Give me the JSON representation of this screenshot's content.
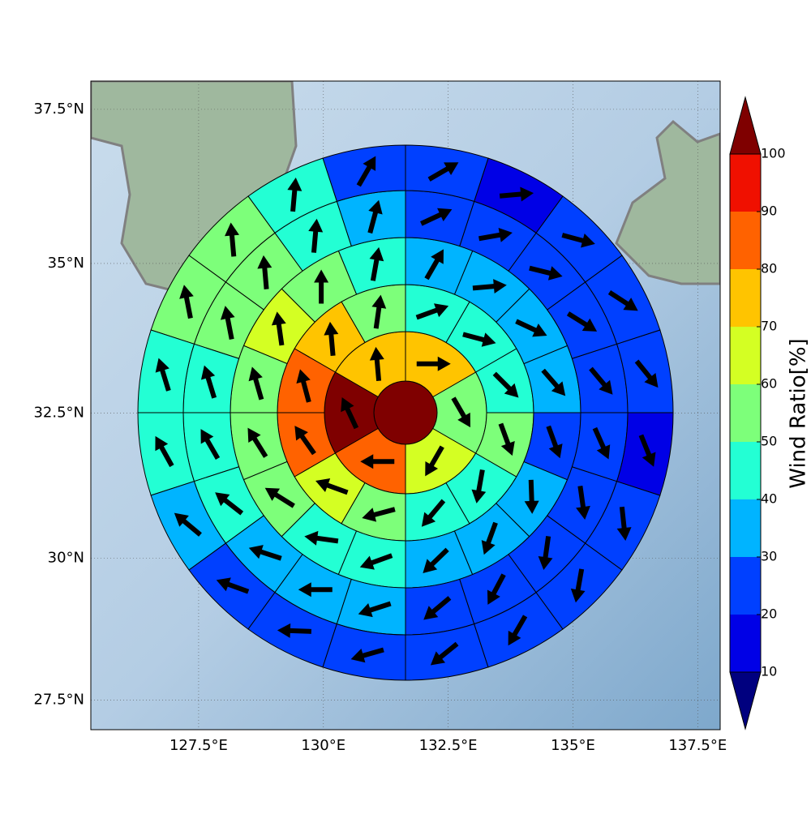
{
  "chart_data": {
    "type": "polar_map",
    "projection": "mercator",
    "xlim": [
      125.34,
      137.95
    ],
    "ylim": [
      26.97,
      37.95
    ],
    "xticks": [
      {
        "value": 127.5,
        "label": "127.5°E"
      },
      {
        "value": 130,
        "label": "130°E"
      },
      {
        "value": 132.5,
        "label": "132.5°E"
      },
      {
        "value": 135,
        "label": "135°E"
      },
      {
        "value": 137.5,
        "label": "137.5°E"
      }
    ],
    "yticks": [
      {
        "value": 27.5,
        "label": "27.5°N"
      },
      {
        "value": 30,
        "label": "30°N"
      },
      {
        "value": 32.5,
        "label": "32.5°N"
      },
      {
        "value": 35,
        "label": "35°N"
      },
      {
        "value": 37.5,
        "label": "37.5°N"
      }
    ],
    "grid": true,
    "colorbar": {
      "label": "Wind Ratio[%]",
      "ticks": [
        10,
        20,
        30,
        40,
        50,
        60,
        70,
        80,
        90,
        100
      ],
      "colors": [
        "#00007f",
        "#0000e6",
        "#0040ff",
        "#00b4ff",
        "#23ffd4",
        "#7dff7a",
        "#d4ff23",
        "#ffc400",
        "#ff6200",
        "#f01000",
        "#7f0000"
      ]
    },
    "center_value": 105,
    "rings": [
      {
        "values": [
          75,
          105,
          85,
          65,
          55,
          75
        ],
        "directions": [
          95,
          115,
          180,
          240,
          300,
          0
        ]
      },
      {
        "values": [
          55,
          75,
          85,
          85,
          65,
          55,
          45,
          45,
          55,
          45,
          45,
          45
        ],
        "directions": [
          82,
          95,
          105,
          125,
          160,
          195,
          230,
          260,
          290,
          315,
          345,
          20
        ]
      },
      {
        "values": [
          45,
          55,
          65,
          55,
          55,
          55,
          45,
          45,
          35,
          35,
          35,
          25,
          35,
          35,
          35,
          35
        ],
        "directions": [
          80,
          90,
          98,
          106,
          122,
          148,
          172,
          200,
          224,
          250,
          272,
          290,
          311,
          335,
          5,
          60
        ]
      },
      {
        "values": [
          35,
          45,
          55,
          55,
          45,
          45,
          45,
          35,
          35,
          35,
          25,
          25,
          25,
          25,
          25,
          25,
          25,
          25,
          25,
          25
        ],
        "directions": [
          75,
          85,
          95,
          101,
          107,
          120,
          142,
          162,
          180,
          198,
          220,
          242,
          262,
          278,
          294,
          310,
          328,
          346,
          10,
          25
        ]
      },
      {
        "values": [
          25,
          45,
          55,
          55,
          45,
          45,
          35,
          25,
          25,
          25,
          25,
          25,
          25,
          25,
          15,
          25,
          25,
          25,
          15,
          25
        ],
        "directions": [
          60,
          85,
          95,
          101,
          107,
          119,
          140,
          160,
          178,
          196,
          219,
          240,
          260,
          276,
          292,
          309,
          327,
          345,
          5,
          30
        ]
      }
    ]
  }
}
